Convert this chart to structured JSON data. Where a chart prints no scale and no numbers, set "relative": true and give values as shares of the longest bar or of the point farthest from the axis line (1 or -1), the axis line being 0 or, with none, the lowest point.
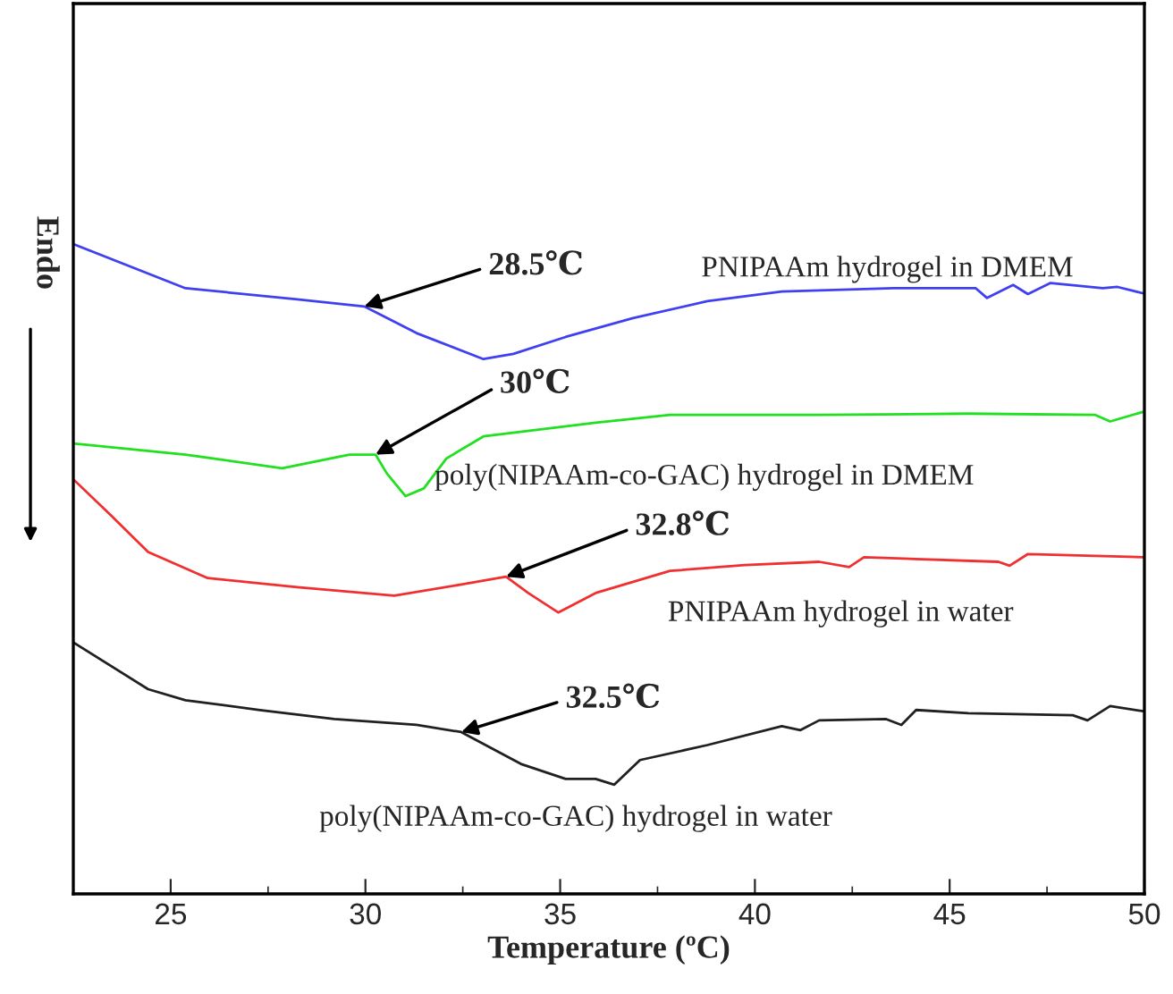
{
  "chart_data": {
    "type": "line",
    "relative": true,
    "xlabel": "Temperature (ºC)",
    "ylabel": "Endo",
    "xlim": [
      22.5,
      50
    ],
    "xticks": [
      25,
      30,
      35,
      40,
      45,
      50
    ],
    "grid": false,
    "legend": false,
    "marker": "none",
    "line_style": "solid",
    "series": [
      {
        "name": "PNIPAAm hydrogel in DMEM",
        "color": "#4040f0",
        "x": [
          22.5,
          25.38,
          28.25,
          29.97,
          31.31,
          33.03,
          33.8,
          35.14,
          36.87,
          38.78,
          40.69,
          43.57,
          45.67,
          45.96,
          46.63,
          47.01,
          47.59,
          48.93,
          49.31,
          49.98
        ],
        "values": [
          1.0,
          0.932,
          0.915,
          0.904,
          0.863,
          0.823,
          0.831,
          0.857,
          0.886,
          0.912,
          0.927,
          0.932,
          0.932,
          0.917,
          0.937,
          0.923,
          0.94,
          0.932,
          0.934,
          0.924
        ]
      },
      {
        "name": "poly(NIPAAm-co-GAC) hydrogel in DMEM",
        "color": "#20e020",
        "x": [
          22.5,
          25.38,
          27.86,
          29.59,
          30.26,
          30.55,
          31.03,
          31.5,
          32.08,
          33.03,
          35.91,
          37.82,
          41.65,
          45.48,
          48.74,
          49.12,
          49.98
        ],
        "values": [
          0.693,
          0.676,
          0.655,
          0.676,
          0.676,
          0.647,
          0.612,
          0.624,
          0.67,
          0.704,
          0.725,
          0.737,
          0.737,
          0.739,
          0.737,
          0.727,
          0.742
        ]
      },
      {
        "name": "PNIPAAm hydrogel in water",
        "color": "#f03030",
        "x": [
          22.5,
          23.46,
          24.42,
          25.95,
          28.25,
          30.74,
          32.46,
          33.61,
          34.18,
          34.95,
          35.91,
          37.82,
          39.74,
          41.65,
          42.42,
          42.8,
          46.25,
          46.54,
          47.01,
          49.98
        ],
        "values": [
          0.638,
          0.583,
          0.526,
          0.486,
          0.472,
          0.459,
          0.476,
          0.488,
          0.463,
          0.433,
          0.463,
          0.497,
          0.506,
          0.511,
          0.503,
          0.518,
          0.511,
          0.505,
          0.523,
          0.518
        ]
      },
      {
        "name": "poly(NIPAAm-co-GAC) hydrogel in water",
        "color": "#202020",
        "x": [
          22.5,
          24.42,
          25.38,
          27.29,
          29.2,
          31.31,
          32.46,
          33.99,
          35.14,
          35.91,
          36.39,
          37.05,
          38.78,
          40.69,
          41.17,
          41.65,
          43.37,
          43.76,
          44.14,
          45.48,
          48.16,
          48.54,
          49.12,
          49.98
        ],
        "values": [
          0.387,
          0.315,
          0.298,
          0.283,
          0.269,
          0.26,
          0.249,
          0.2,
          0.177,
          0.177,
          0.168,
          0.206,
          0.229,
          0.258,
          0.252,
          0.267,
          0.269,
          0.26,
          0.283,
          0.278,
          0.275,
          0.267,
          0.289,
          0.281
        ]
      }
    ],
    "annotations": [
      {
        "text": "28.5℃",
        "x": 29.97,
        "y": 0.904
      },
      {
        "text": "30℃",
        "x": 30.26,
        "y": 0.676
      },
      {
        "text": "32.8℃",
        "x": 33.61,
        "y": 0.488
      },
      {
        "text": "32.5℃",
        "x": 32.46,
        "y": 0.249
      }
    ]
  }
}
